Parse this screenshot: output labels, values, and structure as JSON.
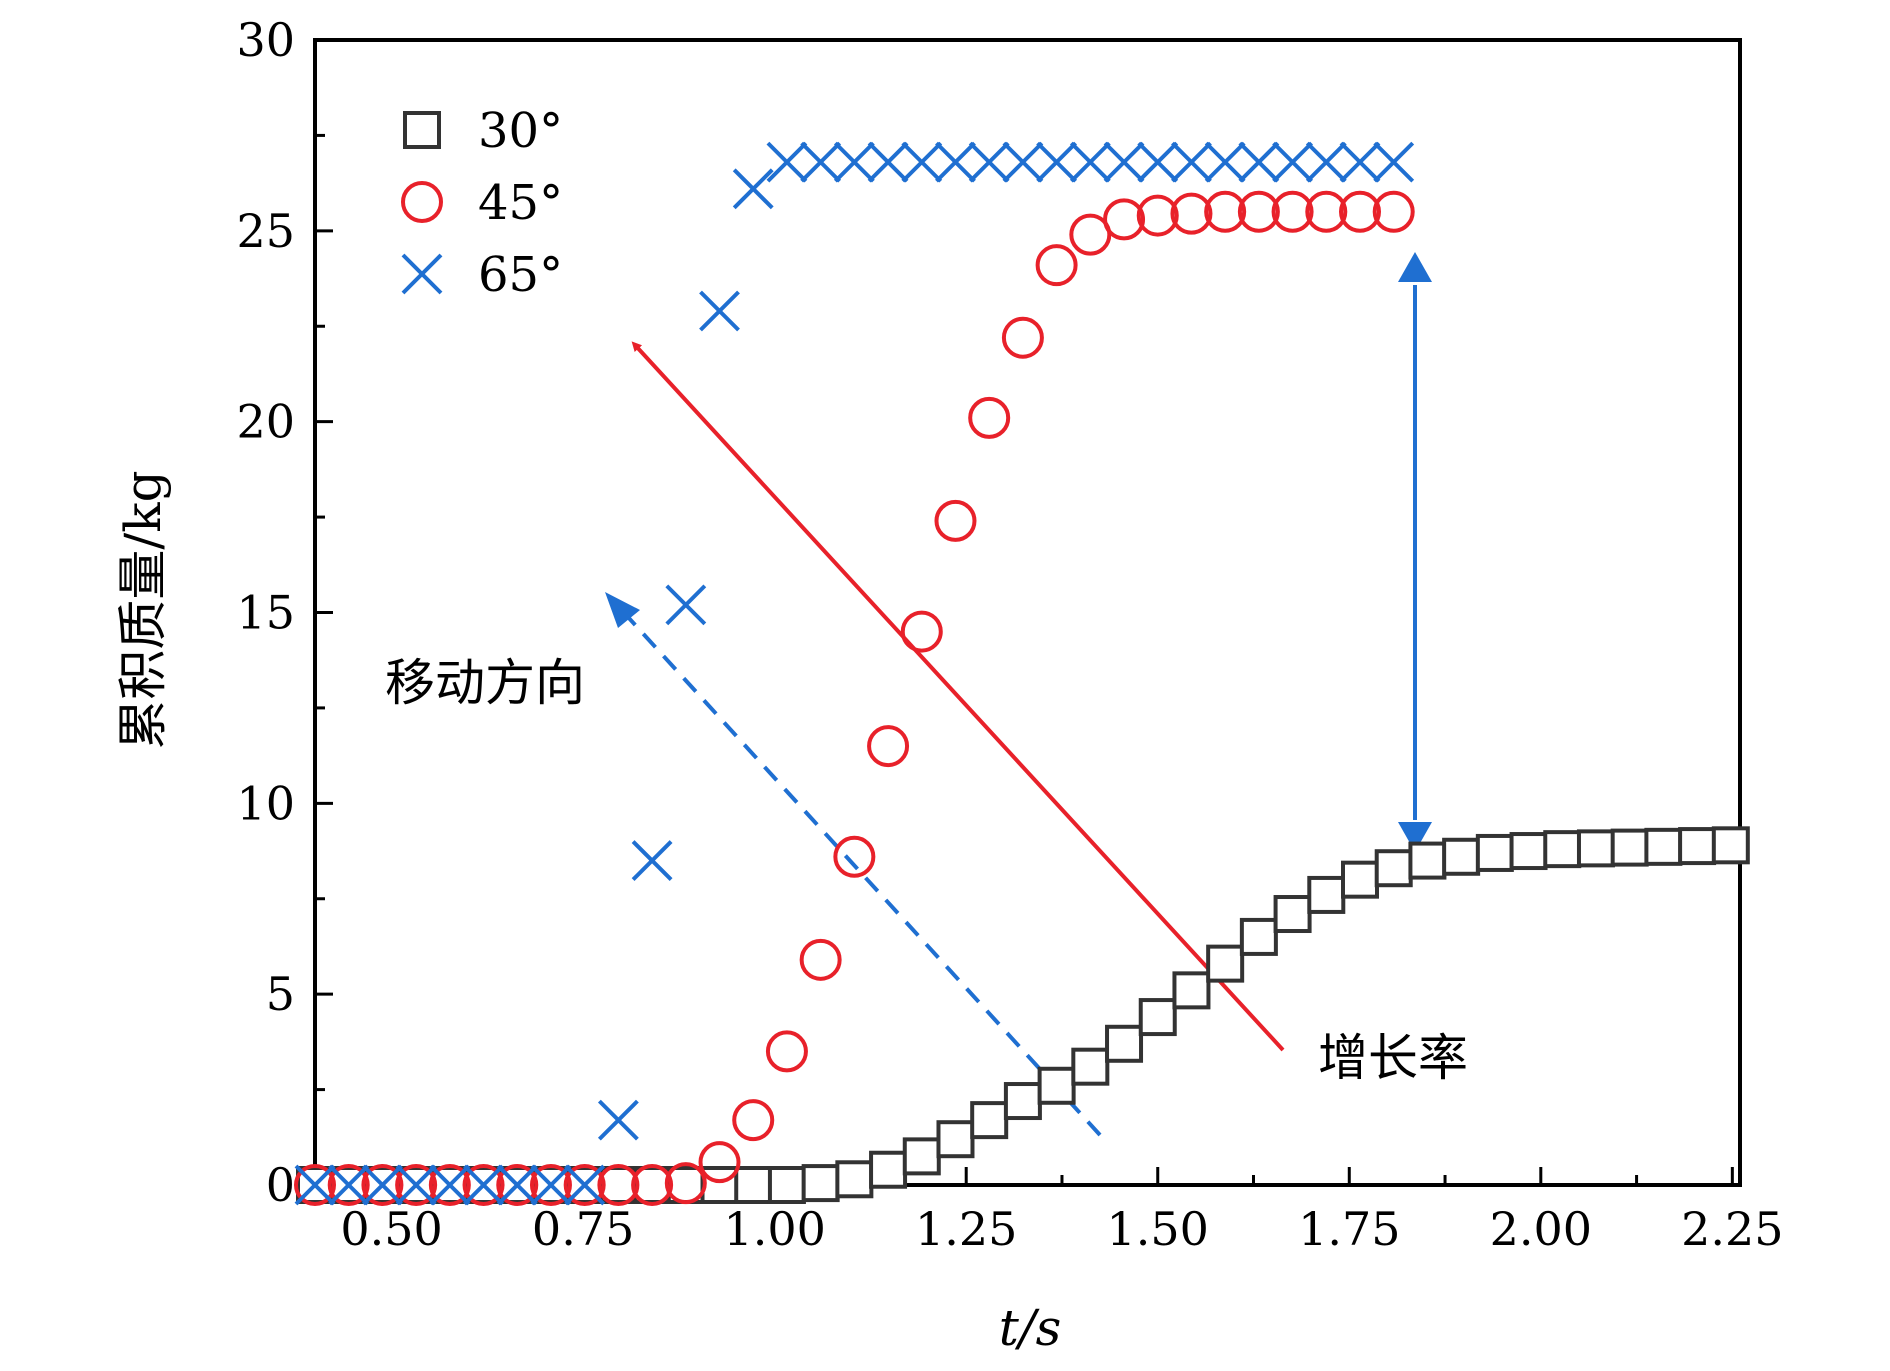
{
  "chart_data": {
    "type": "scatter",
    "xlabel": "t/s",
    "ylabel": "累积质量/kg",
    "xlim": [
      0.4,
      2.26
    ],
    "ylim": [
      0,
      30
    ],
    "xticks": [
      "0.50",
      "0.75",
      "1.00",
      "1.25",
      "1.50",
      "1.75",
      "2.00",
      "2.25"
    ],
    "yticks": [
      "0",
      "5",
      "10",
      "15",
      "20",
      "25",
      "30"
    ],
    "legend_position": "top-left",
    "series": [
      {
        "name": "30°",
        "marker": "square",
        "color": "#333333",
        "x": [
          0.4,
          0.444,
          0.488,
          0.532,
          0.576,
          0.62,
          0.664,
          0.708,
          0.752,
          0.796,
          0.84,
          0.884,
          0.928,
          0.972,
          1.016,
          1.06,
          1.104,
          1.148,
          1.192,
          1.236,
          1.28,
          1.324,
          1.368,
          1.412,
          1.456,
          1.5,
          1.544,
          1.588,
          1.632,
          1.676,
          1.72,
          1.764,
          1.808,
          1.852,
          1.896,
          1.94,
          1.984,
          2.028,
          2.072,
          2.116,
          2.16,
          2.204,
          2.248
        ],
        "y": [
          0,
          0,
          0,
          0,
          0,
          0,
          0,
          0,
          0,
          0,
          0,
          0,
          0,
          0,
          0,
          0.05,
          0.15,
          0.4,
          0.75,
          1.2,
          1.7,
          2.2,
          2.6,
          3.1,
          3.7,
          4.4,
          5.1,
          5.8,
          6.5,
          7.1,
          7.6,
          8.0,
          8.3,
          8.5,
          8.6,
          8.7,
          8.75,
          8.8,
          8.82,
          8.84,
          8.86,
          8.88,
          8.9
        ]
      },
      {
        "name": "45°",
        "marker": "circle",
        "color": "#e8212a",
        "x": [
          0.4,
          0.444,
          0.488,
          0.532,
          0.576,
          0.62,
          0.664,
          0.708,
          0.752,
          0.796,
          0.84,
          0.884,
          0.928,
          0.972,
          1.016,
          1.06,
          1.104,
          1.148,
          1.192,
          1.236,
          1.28,
          1.324,
          1.368,
          1.412,
          1.456,
          1.5,
          1.544,
          1.588,
          1.632,
          1.676,
          1.72,
          1.764,
          1.808
        ],
        "y": [
          0,
          0,
          0,
          0,
          0,
          0,
          0,
          0,
          0,
          0,
          0,
          0.05,
          0.6,
          1.7,
          3.5,
          5.9,
          8.6,
          11.5,
          14.5,
          17.4,
          20.1,
          22.2,
          24.1,
          24.9,
          25.3,
          25.4,
          25.45,
          25.5,
          25.5,
          25.5,
          25.5,
          25.5,
          25.5
        ]
      },
      {
        "name": "65°",
        "marker": "cross",
        "color": "#1f6fd1",
        "x": [
          0.4,
          0.444,
          0.488,
          0.532,
          0.576,
          0.62,
          0.664,
          0.708,
          0.752,
          0.796,
          0.84,
          0.884,
          0.928,
          0.972,
          1.016,
          1.06,
          1.104,
          1.148,
          1.192,
          1.236,
          1.28,
          1.324,
          1.368,
          1.412,
          1.456,
          1.5,
          1.544,
          1.588,
          1.632,
          1.676,
          1.72,
          1.764,
          1.808
        ],
        "y": [
          0,
          0,
          0,
          0,
          0,
          0,
          0,
          0,
          0,
          1.7,
          8.5,
          15.2,
          22.9,
          26.1,
          26.8,
          26.8,
          26.8,
          26.8,
          26.8,
          26.8,
          26.8,
          26.8,
          26.8,
          26.8,
          26.8,
          26.8,
          26.8,
          26.8,
          26.8,
          26.8,
          26.8,
          26.8,
          26.8
        ]
      }
    ],
    "annotations": {
      "direction_label": "移动方向",
      "growth_label": "增长率"
    }
  }
}
